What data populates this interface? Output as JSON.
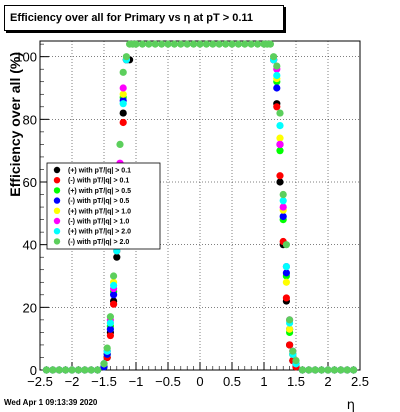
{
  "chart_data": {
    "type": "scatter",
    "title": "Efficiency over all for Primary vs    η at pT > 0.11",
    "xlabel": "η",
    "ylabel": "Efficiency over all (%)",
    "xlim": [
      -2.5,
      2.5
    ],
    "ylim": [
      0,
      105
    ],
    "x_ticks": [
      -2.5,
      -2,
      -1.5,
      -1,
      -0.5,
      0,
      0.5,
      1,
      1.5,
      2,
      2.5
    ],
    "x_tick_labels": [
      "−2.5",
      "−2",
      "−1.5",
      "−1",
      "−0.5",
      "0",
      "0.5",
      "1",
      "1.5",
      "2",
      "2.5"
    ],
    "y_ticks": [
      0,
      20,
      40,
      60,
      80,
      100
    ],
    "y_tick_labels": [
      "0",
      "20",
      "40",
      "60",
      "80",
      "100"
    ],
    "grid": true,
    "legend_position": "left-middle",
    "timestamp": "Wed Apr  1 09:13:39 2020",
    "series": [
      {
        "name": "(+) with pT/|q| > 0.1",
        "color": "#000000",
        "marker": "circle",
        "x": [
          -2.4,
          -2.3,
          -2.2,
          -2.1,
          -2.0,
          -1.9,
          -1.8,
          -1.7,
          -1.6,
          -1.5,
          -1.45,
          -1.4,
          -1.35,
          -1.3,
          -1.25,
          -1.2,
          -1.15,
          -1.1,
          1.15,
          1.2,
          1.25,
          1.3,
          1.35,
          1.4,
          1.45,
          1.5,
          1.6,
          1.7,
          1.8,
          1.9,
          2.0,
          2.1,
          2.2,
          2.3,
          2.4
        ],
        "y": [
          0,
          0,
          0,
          0,
          0,
          0,
          0,
          0,
          0,
          1,
          4,
          12,
          22,
          36,
          56,
          82,
          99,
          99,
          99,
          85,
          60,
          40,
          22,
          8,
          3,
          1,
          0,
          0,
          0,
          0,
          0,
          0,
          0,
          0,
          0
        ]
      },
      {
        "name": "(-) with pT/|q| > 0.1",
        "color": "#ff0000",
        "marker": "circle",
        "x": [
          -2.4,
          -2.3,
          -2.2,
          -2.1,
          -2.0,
          -1.9,
          -1.8,
          -1.7,
          -1.6,
          -1.5,
          -1.45,
          -1.4,
          -1.35,
          -1.3,
          -1.25,
          -1.2,
          -1.15,
          1.15,
          1.2,
          1.25,
          1.3,
          1.35,
          1.4,
          1.45,
          1.5,
          1.6,
          1.7,
          1.8,
          1.9,
          2.0,
          2.1,
          2.2,
          2.3,
          2.4
        ],
        "y": [
          0,
          0,
          0,
          0,
          0,
          0,
          0,
          0,
          0,
          1,
          4,
          11,
          21,
          38,
          57,
          79,
          99,
          99,
          84,
          62,
          41,
          23,
          8,
          3,
          1,
          0,
          0,
          0,
          0,
          0,
          0,
          0,
          0,
          0
        ]
      },
      {
        "name": "(+) with pT/|q| > 0.5",
        "color": "#00ff00",
        "marker": "circle",
        "x": [
          -2.4,
          -2.3,
          -2.2,
          -2.1,
          -2.0,
          -1.9,
          -1.8,
          -1.7,
          -1.6,
          -1.5,
          -1.45,
          -1.4,
          -1.35,
          -1.3,
          -1.25,
          -1.2,
          -1.15,
          1.15,
          1.2,
          1.25,
          1.3,
          1.35,
          1.4,
          1.45,
          1.5,
          1.6,
          1.7,
          1.8,
          1.9,
          2.0,
          2.1,
          2.2,
          2.3,
          2.4
        ],
        "y": [
          0,
          0,
          0,
          0,
          0,
          0,
          0,
          0,
          0,
          1,
          5,
          14,
          25,
          40,
          62,
          87,
          99,
          99,
          92,
          70,
          48,
          30,
          12,
          5,
          2,
          0,
          0,
          0,
          0,
          0,
          0,
          0,
          0,
          0
        ]
      },
      {
        "name": "(-) with pT/|q| > 0.5",
        "color": "#0000ff",
        "marker": "circle",
        "x": [
          -2.4,
          -2.3,
          -2.2,
          -2.1,
          -2.0,
          -1.9,
          -1.8,
          -1.7,
          -1.6,
          -1.5,
          -1.45,
          -1.4,
          -1.35,
          -1.3,
          -1.25,
          -1.2,
          -1.15,
          1.15,
          1.2,
          1.25,
          1.3,
          1.35,
          1.4,
          1.45,
          1.5,
          1.6,
          1.7,
          1.8,
          1.9,
          2.0,
          2.1,
          2.2,
          2.3,
          2.4
        ],
        "y": [
          0,
          0,
          0,
          0,
          0,
          0,
          0,
          0,
          0,
          1,
          5,
          13,
          24,
          41,
          63,
          86,
          99,
          99,
          90,
          72,
          49,
          31,
          13,
          5,
          2,
          0,
          0,
          0,
          0,
          0,
          0,
          0,
          0,
          0
        ]
      },
      {
        "name": "(+) with pT/|q| > 1.0",
        "color": "#ffff00",
        "marker": "circle",
        "x": [
          -2.4,
          -2.3,
          -2.2,
          -2.1,
          -2.0,
          -1.9,
          -1.8,
          -1.7,
          -1.6,
          -1.5,
          -1.45,
          -1.4,
          -1.35,
          -1.3,
          -1.25,
          -1.2,
          -1.15,
          1.15,
          1.2,
          1.25,
          1.3,
          1.35,
          1.4,
          1.45,
          1.5,
          1.6,
          1.7,
          1.8,
          1.9,
          2.0,
          2.1,
          2.2,
          2.3,
          2.4
        ],
        "y": [
          0,
          0,
          0,
          0,
          0,
          0,
          0,
          0,
          0,
          2,
          6,
          15,
          28,
          44,
          64,
          88,
          99,
          99,
          93,
          74,
          51,
          28,
          13,
          5,
          2,
          0,
          0,
          0,
          0,
          0,
          0,
          0,
          0,
          0
        ]
      },
      {
        "name": "(-) with pT/|q| > 1.0",
        "color": "#ff00ff",
        "marker": "circle",
        "x": [
          -2.4,
          -2.3,
          -2.2,
          -2.1,
          -2.0,
          -1.9,
          -1.8,
          -1.7,
          -1.6,
          -1.5,
          -1.45,
          -1.4,
          -1.35,
          -1.3,
          -1.25,
          -1.2,
          -1.15,
          1.15,
          1.2,
          1.25,
          1.3,
          1.35,
          1.4,
          1.45,
          1.5,
          1.6,
          1.7,
          1.8,
          1.9,
          2.0,
          2.1,
          2.2,
          2.3,
          2.4
        ],
        "y": [
          0,
          0,
          0,
          0,
          0,
          0,
          0,
          0,
          0,
          2,
          6,
          16,
          26,
          46,
          66,
          90,
          99,
          99,
          96,
          72,
          52,
          33,
          16,
          6,
          2,
          0,
          0,
          0,
          0,
          0,
          0,
          0,
          0,
          0
        ]
      },
      {
        "name": "(+) with pT/|q| > 2.0",
        "color": "#00ffff",
        "marker": "circle",
        "x": [
          -2.4,
          -2.3,
          -2.2,
          -2.1,
          -2.0,
          -1.9,
          -1.8,
          -1.7,
          -1.6,
          -1.5,
          -1.45,
          -1.4,
          -1.35,
          -1.3,
          -1.25,
          -1.2,
          -1.15,
          1.15,
          1.2,
          1.25,
          1.3,
          1.35,
          1.4,
          1.45,
          1.5,
          1.6,
          1.7,
          1.8,
          1.9,
          2.0,
          2.1,
          2.2,
          2.3,
          2.4
        ],
        "y": [
          0,
          0,
          0,
          0,
          0,
          0,
          0,
          0,
          0,
          2,
          6,
          15,
          27,
          38,
          60,
          85,
          99,
          99,
          94,
          78,
          54,
          33,
          15,
          5,
          2,
          0,
          0,
          0,
          0,
          0,
          0,
          0,
          0,
          0
        ]
      },
      {
        "name": "(-) with pT/|q| > 2.0",
        "color": "#5ccf5c",
        "marker": "circle",
        "x": [
          -2.4,
          -2.3,
          -2.2,
          -2.1,
          -2.0,
          -1.9,
          -1.8,
          -1.7,
          -1.6,
          -1.5,
          -1.45,
          -1.4,
          -1.35,
          -1.3,
          -1.25,
          -1.2,
          -1.15,
          -1.1,
          -1.05,
          -1.0,
          -0.9,
          -0.8,
          -0.7,
          -0.6,
          -0.5,
          -0.4,
          -0.3,
          -0.2,
          -0.1,
          0,
          0.1,
          0.2,
          0.3,
          0.4,
          0.5,
          0.6,
          0.7,
          0.8,
          0.9,
          1.0,
          1.05,
          1.1,
          1.15,
          1.2,
          1.25,
          1.3,
          1.35,
          1.4,
          1.45,
          1.5,
          1.6,
          1.7,
          1.8,
          1.9,
          2.0,
          2.1,
          2.2,
          2.3,
          2.4
        ],
        "y": [
          0,
          0,
          0,
          0,
          0,
          0,
          0,
          0,
          0,
          2,
          7,
          17,
          30,
          48,
          72,
          95,
          100,
          104,
          104,
          104,
          104,
          104,
          104,
          104,
          104,
          104,
          104,
          104,
          104,
          104,
          104,
          104,
          104,
          104,
          104,
          104,
          104,
          104,
          104,
          104,
          104,
          104,
          100,
          97,
          82,
          56,
          40,
          16,
          6,
          3,
          0,
          0,
          0,
          0,
          0,
          0,
          0,
          0,
          0
        ]
      }
    ]
  }
}
